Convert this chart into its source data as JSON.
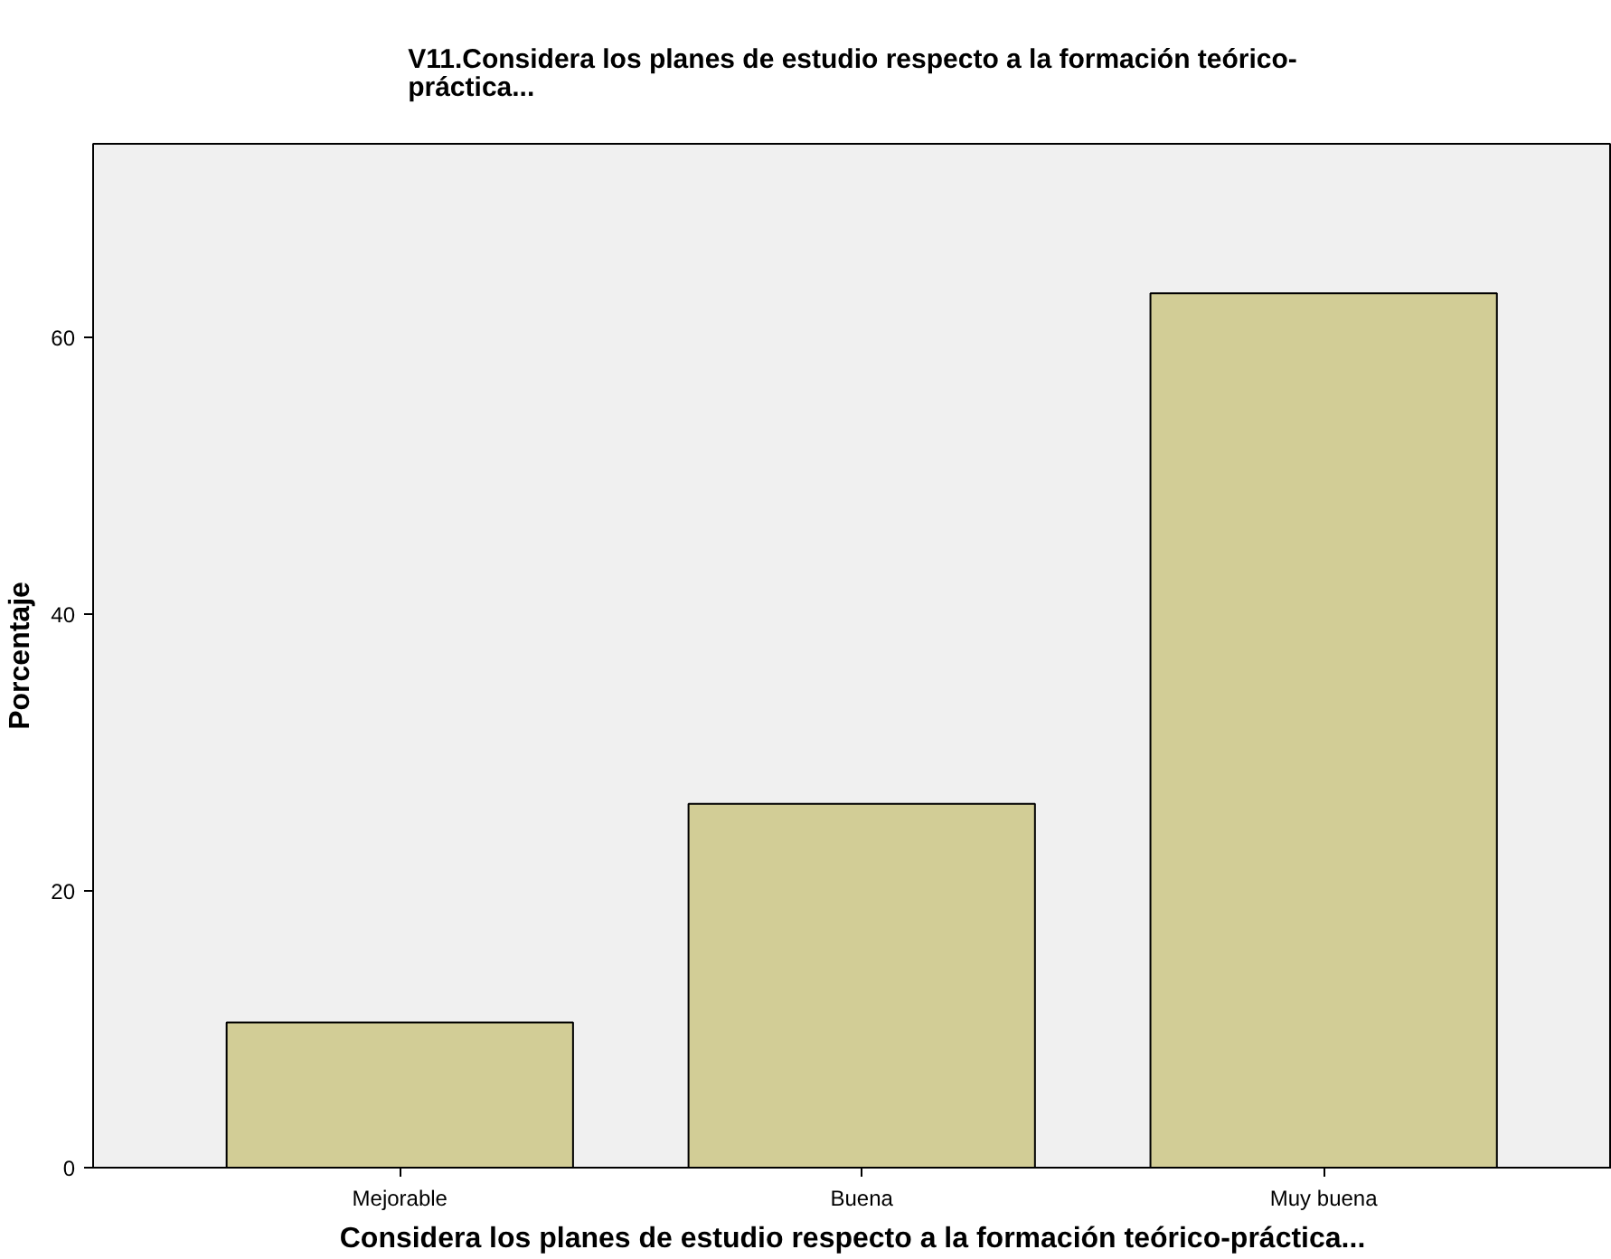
{
  "chart_data": {
    "type": "bar",
    "title": "V11.Considera los planes de estudio respecto a la formación teórico-práctica...",
    "xlabel": "Considera los planes de estudio respecto a la formación teórico-práctica...",
    "ylabel": "Porcentaje",
    "categories": [
      "Mejorable",
      "Buena",
      "Muy buena"
    ],
    "values": [
      10.5,
      26.3,
      63.2
    ],
    "color": "#d2cd96",
    "ylim": [
      0,
      74
    ],
    "yticks": [
      0,
      20,
      40,
      60
    ],
    "grid": false
  }
}
